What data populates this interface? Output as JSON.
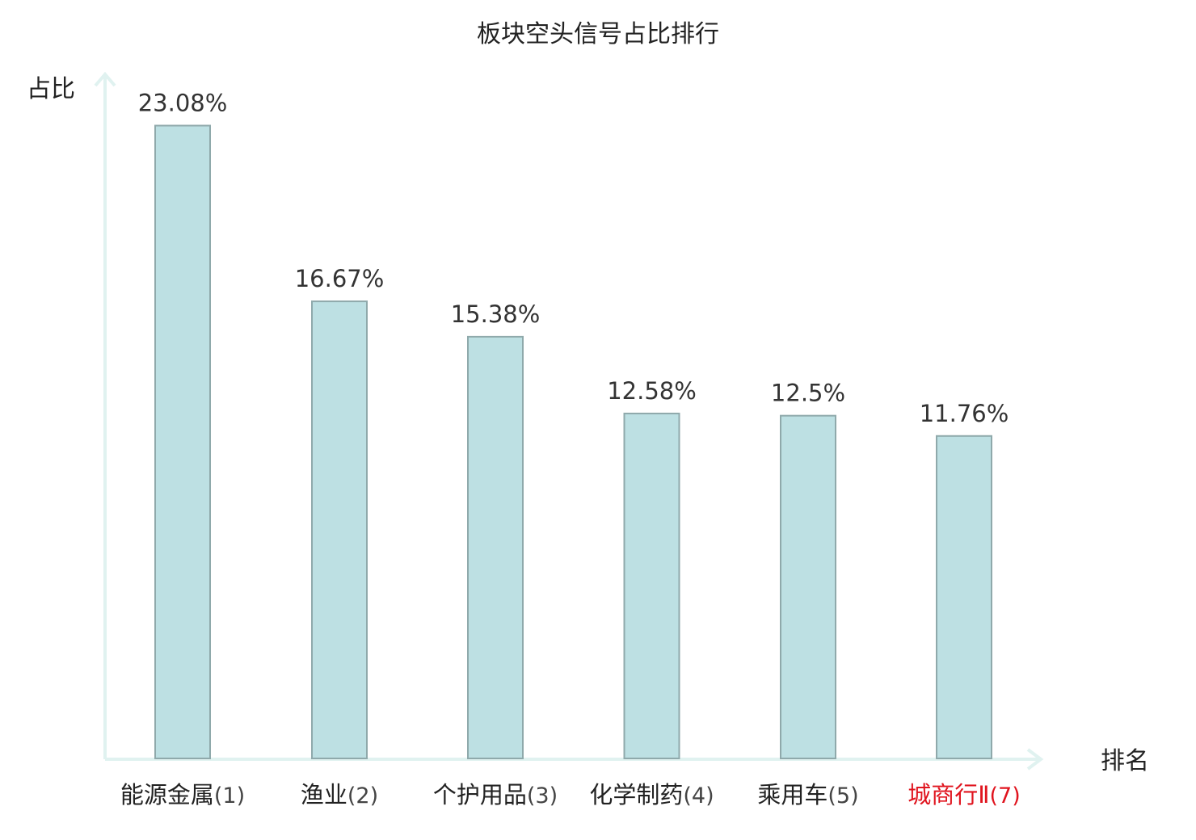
{
  "chart_data": {
    "type": "bar",
    "title": "板块空头信号占比排行",
    "ylabel": "占比",
    "xlabel": "排名",
    "ylim": [
      0,
      25
    ],
    "grid": false,
    "legend": "none",
    "categories": [
      {
        "name": "能源金属",
        "rank": "(1)",
        "highlight": false
      },
      {
        "name": "渔业",
        "rank": "(2)",
        "highlight": false
      },
      {
        "name": "个护用品",
        "rank": "(3)",
        "highlight": false
      },
      {
        "name": "化学制药",
        "rank": "(4)",
        "highlight": false
      },
      {
        "name": "乘用车",
        "rank": "(5)",
        "highlight": false
      },
      {
        "name": "城商行Ⅱ",
        "rank": "(7)",
        "highlight": true
      }
    ],
    "values": [
      23.08,
      16.67,
      15.38,
      12.58,
      12.5,
      11.76
    ],
    "value_labels": [
      "23.08%",
      "16.67%",
      "15.38%",
      "12.58%",
      "12.5%",
      "11.76%"
    ],
    "colors": {
      "bar_fill": "#bde0e3",
      "bar_stroke": "#8fa9ab",
      "axis": "#e0f2f0",
      "text": "#222222",
      "highlight": "#e0141e"
    }
  }
}
